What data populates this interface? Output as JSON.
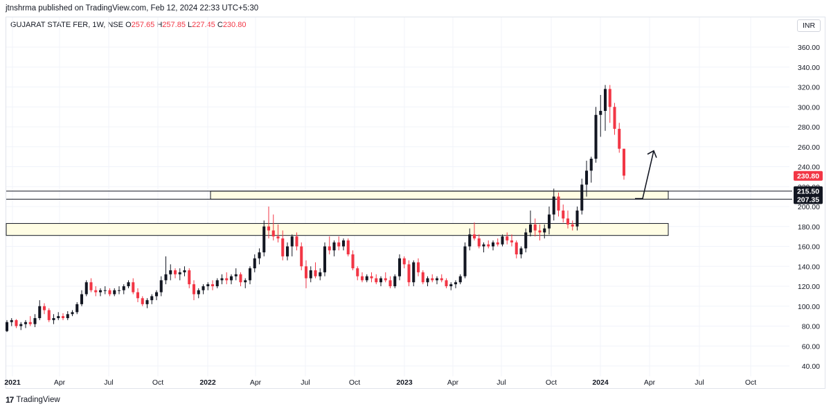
{
  "header": {
    "publisher": "jtnshrma published on TradingView.com, Feb 12, 2024 22:33 UTC+5:30"
  },
  "legend": {
    "symbol": "GUJARAT STATE FER, 1W, NSE",
    "o_label": "O",
    "o_value": "257.65",
    "h_label": "H",
    "h_value": "257.85",
    "l_label": "L",
    "l_value": "227.45",
    "c_label": "C",
    "c_value": "230.80"
  },
  "currency": "INR",
  "footer": {
    "logo_text": "TradingView"
  },
  "colors": {
    "up": "#131722",
    "down": "#f23645",
    "zone_fill": "#fffde4",
    "zone_stroke": "#131722",
    "grid": "#f0f3fa"
  },
  "chart_data": {
    "type": "candlestick",
    "ylim": [
      30,
      372
    ],
    "y_ticks": [
      "360.00",
      "340.00",
      "320.00",
      "300.00",
      "280.00",
      "260.00",
      "240.00",
      "220.00",
      "200.00",
      "180.00",
      "160.00",
      "140.00",
      "120.00",
      "100.00",
      "80.00",
      "60.00",
      "40.00"
    ],
    "x_ticks": [
      "2021",
      "Apr",
      "Jul",
      "Oct",
      "2022",
      "Apr",
      "Jul",
      "Oct",
      "2023",
      "Apr",
      "Jul",
      "Oct",
      "2024",
      "Apr",
      "Jul",
      "Oct"
    ],
    "price_labels": [
      {
        "value": 230.8,
        "text": "230.80",
        "color": "#f23645"
      },
      {
        "value": 215.5,
        "text": "215.50",
        "color": "#131722"
      },
      {
        "value": 207.35,
        "text": "207.35",
        "color": "#131722"
      }
    ],
    "horizontal_lines": [
      215.5,
      207.35
    ],
    "zones": [
      {
        "top": 215.5,
        "bottom": 207.35,
        "x_start": "2022-Apr-5",
        "x_end": "2024-Apr-3"
      },
      {
        "top": 183,
        "bottom": 171,
        "x_start": "2021",
        "x_end": "2024-Apr-3"
      }
    ],
    "arrow": {
      "from": [
        215,
        208
      ],
      "via": [
        230,
        208
      ],
      "to": [
        258,
        256
      ]
    },
    "weekly_ohlc": [
      [
        75,
        86,
        74,
        84
      ],
      [
        84,
        88,
        80,
        86
      ],
      [
        86,
        87,
        78,
        80
      ],
      [
        80,
        84,
        76,
        82
      ],
      [
        82,
        86,
        78,
        84
      ],
      [
        84,
        90,
        80,
        82
      ],
      [
        82,
        92,
        79,
        88
      ],
      [
        88,
        106,
        86,
        100
      ],
      [
        100,
        103,
        92,
        96
      ],
      [
        96,
        98,
        84,
        86
      ],
      [
        86,
        92,
        82,
        88
      ],
      [
        88,
        94,
        86,
        90
      ],
      [
        90,
        93,
        86,
        88
      ],
      [
        88,
        95,
        86,
        92
      ],
      [
        92,
        96,
        90,
        94
      ],
      [
        94,
        104,
        92,
        102
      ],
      [
        102,
        116,
        100,
        112
      ],
      [
        112,
        126,
        110,
        124
      ],
      [
        124,
        128,
        114,
        116
      ],
      [
        116,
        120,
        110,
        114
      ],
      [
        114,
        118,
        110,
        116
      ],
      [
        116,
        120,
        112,
        116
      ],
      [
        116,
        118,
        110,
        112
      ],
      [
        112,
        118,
        110,
        116
      ],
      [
        116,
        120,
        112,
        116
      ],
      [
        116,
        122,
        112,
        120
      ],
      [
        120,
        126,
        118,
        124
      ],
      [
        124,
        128,
        112,
        114
      ],
      [
        114,
        118,
        104,
        108
      ],
      [
        108,
        110,
        100,
        102
      ],
      [
        102,
        108,
        98,
        106
      ],
      [
        106,
        112,
        102,
        110
      ],
      [
        110,
        116,
        106,
        114
      ],
      [
        114,
        130,
        110,
        126
      ],
      [
        126,
        150,
        122,
        132
      ],
      [
        132,
        142,
        126,
        136
      ],
      [
        136,
        138,
        128,
        132
      ],
      [
        132,
        138,
        126,
        134
      ],
      [
        134,
        140,
        130,
        136
      ],
      [
        136,
        138,
        118,
        122
      ],
      [
        122,
        126,
        106,
        112
      ],
      [
        112,
        118,
        108,
        116
      ],
      [
        116,
        122,
        112,
        120
      ],
      [
        120,
        124,
        116,
        122
      ],
      [
        122,
        126,
        116,
        120
      ],
      [
        120,
        128,
        118,
        126
      ],
      [
        126,
        132,
        122,
        128
      ],
      [
        128,
        134,
        122,
        126
      ],
      [
        126,
        132,
        122,
        130
      ],
      [
        130,
        138,
        126,
        132
      ],
      [
        132,
        134,
        120,
        124
      ],
      [
        124,
        128,
        118,
        126
      ],
      [
        126,
        140,
        122,
        138
      ],
      [
        138,
        152,
        134,
        148
      ],
      [
        148,
        158,
        142,
        154
      ],
      [
        154,
        186,
        150,
        180
      ],
      [
        180,
        200,
        168,
        176
      ],
      [
        176,
        192,
        166,
        170
      ],
      [
        170,
        182,
        164,
        168
      ],
      [
        168,
        176,
        146,
        150
      ],
      [
        150,
        164,
        146,
        160
      ],
      [
        160,
        172,
        150,
        170
      ],
      [
        170,
        174,
        156,
        160
      ],
      [
        160,
        164,
        136,
        140
      ],
      [
        140,
        146,
        118,
        128
      ],
      [
        128,
        140,
        124,
        136
      ],
      [
        136,
        144,
        128,
        130
      ],
      [
        130,
        138,
        126,
        134
      ],
      [
        134,
        164,
        130,
        160
      ],
      [
        160,
        170,
        152,
        156
      ],
      [
        156,
        166,
        150,
        164
      ],
      [
        164,
        170,
        156,
        160
      ],
      [
        160,
        168,
        156,
        166
      ],
      [
        166,
        168,
        150,
        152
      ],
      [
        152,
        156,
        136,
        138
      ],
      [
        138,
        140,
        126,
        130
      ],
      [
        130,
        134,
        124,
        126
      ],
      [
        126,
        132,
        124,
        130
      ],
      [
        130,
        134,
        124,
        128
      ],
      [
        128,
        132,
        122,
        124
      ],
      [
        124,
        130,
        120,
        128
      ],
      [
        128,
        134,
        124,
        126
      ],
      [
        126,
        130,
        118,
        120
      ],
      [
        120,
        132,
        118,
        130
      ],
      [
        130,
        152,
        126,
        148
      ],
      [
        148,
        150,
        138,
        142
      ],
      [
        142,
        146,
        120,
        124
      ],
      [
        124,
        146,
        120,
        144
      ],
      [
        144,
        148,
        130,
        134
      ],
      [
        134,
        136,
        122,
        124
      ],
      [
        124,
        130,
        120,
        128
      ],
      [
        128,
        132,
        124,
        126
      ],
      [
        126,
        130,
        122,
        128
      ],
      [
        128,
        132,
        124,
        126
      ],
      [
        126,
        128,
        118,
        120
      ],
      [
        120,
        124,
        116,
        122
      ],
      [
        122,
        126,
        118,
        124
      ],
      [
        124,
        132,
        122,
        130
      ],
      [
        130,
        164,
        128,
        160
      ],
      [
        160,
        178,
        156,
        172
      ],
      [
        172,
        184,
        166,
        168
      ],
      [
        168,
        172,
        158,
        160
      ],
      [
        160,
        164,
        154,
        162
      ],
      [
        162,
        166,
        158,
        160
      ],
      [
        160,
        166,
        156,
        164
      ],
      [
        164,
        168,
        160,
        162
      ],
      [
        162,
        172,
        160,
        170
      ],
      [
        170,
        174,
        162,
        166
      ],
      [
        166,
        172,
        160,
        164
      ],
      [
        164,
        166,
        148,
        152
      ],
      [
        152,
        160,
        148,
        158
      ],
      [
        158,
        178,
        154,
        174
      ],
      [
        174,
        196,
        170,
        182
      ],
      [
        182,
        188,
        170,
        176
      ],
      [
        176,
        182,
        166,
        174
      ],
      [
        174,
        182,
        168,
        178
      ],
      [
        178,
        200,
        172,
        192
      ],
      [
        192,
        218,
        186,
        210
      ],
      [
        210,
        214,
        190,
        196
      ],
      [
        196,
        202,
        184,
        188
      ],
      [
        188,
        196,
        178,
        182
      ],
      [
        182,
        186,
        176,
        180
      ],
      [
        180,
        200,
        176,
        196
      ],
      [
        196,
        228,
        192,
        222
      ],
      [
        222,
        246,
        210,
        236
      ],
      [
        236,
        250,
        224,
        248
      ],
      [
        248,
        300,
        244,
        292
      ],
      [
        292,
        312,
        270,
        296
      ],
      [
        296,
        322,
        276,
        318
      ],
      [
        318,
        322,
        284,
        300
      ],
      [
        300,
        304,
        272,
        278
      ],
      [
        278,
        284,
        254,
        258
      ],
      [
        258,
        258,
        227,
        231
      ]
    ]
  }
}
